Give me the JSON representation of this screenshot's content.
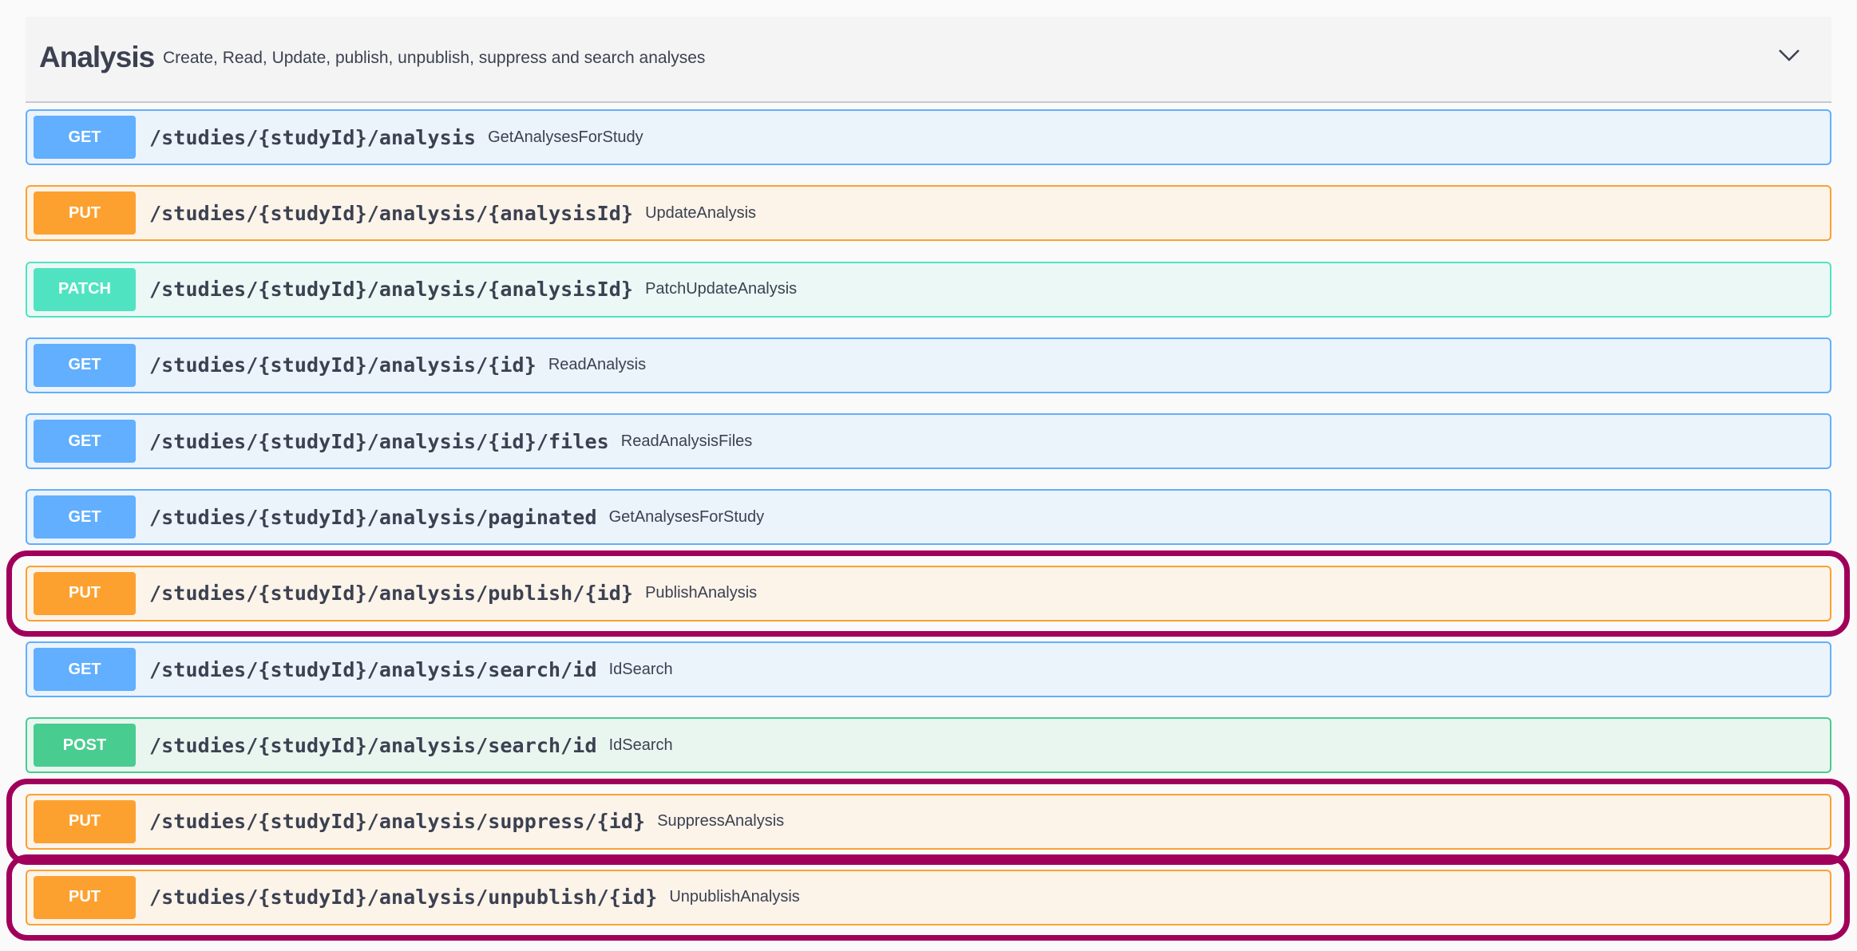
{
  "section": {
    "title": "Analysis",
    "description": "Create, Read, Update, publish, unpublish, suppress and search analyses",
    "toggle_icon": "chevron-down-icon"
  },
  "method_colors": {
    "GET": {
      "badge": "#61affe",
      "bg": "#ebf3fb",
      "border": "#61affe"
    },
    "PUT": {
      "badge": "#fca130",
      "bg": "#fcf3e9",
      "border": "#fca130"
    },
    "PATCH": {
      "badge": "#50e3c2",
      "bg": "#ebf8f5",
      "border": "#50e3c2"
    },
    "POST": {
      "badge": "#49cc90",
      "bg": "#e9f6f0",
      "border": "#49cc90"
    }
  },
  "highlight_color": "#a0005a",
  "endpoints": [
    {
      "method": "GET",
      "path": "/studies/{studyId}/analysis",
      "summary": "GetAnalysesForStudy",
      "highlighted": false
    },
    {
      "method": "PUT",
      "path": "/studies/{studyId}/analysis/{analysisId}",
      "summary": "UpdateAnalysis",
      "highlighted": false
    },
    {
      "method": "PATCH",
      "path": "/studies/{studyId}/analysis/{analysisId}",
      "summary": "PatchUpdateAnalysis",
      "highlighted": false
    },
    {
      "method": "GET",
      "path": "/studies/{studyId}/analysis/{id}",
      "summary": "ReadAnalysis",
      "highlighted": false
    },
    {
      "method": "GET",
      "path": "/studies/{studyId}/analysis/{id}/files",
      "summary": "ReadAnalysisFiles",
      "highlighted": false
    },
    {
      "method": "GET",
      "path": "/studies/{studyId}/analysis/paginated",
      "summary": "GetAnalysesForStudy",
      "highlighted": false
    },
    {
      "method": "PUT",
      "path": "/studies/{studyId}/analysis/publish/{id}",
      "summary": "PublishAnalysis",
      "highlighted": true
    },
    {
      "method": "GET",
      "path": "/studies/{studyId}/analysis/search/id",
      "summary": "IdSearch",
      "highlighted": false
    },
    {
      "method": "POST",
      "path": "/studies/{studyId}/analysis/search/id",
      "summary": "IdSearch",
      "highlighted": false
    },
    {
      "method": "PUT",
      "path": "/studies/{studyId}/analysis/suppress/{id}",
      "summary": "SuppressAnalysis",
      "highlighted": true
    },
    {
      "method": "PUT",
      "path": "/studies/{studyId}/analysis/unpublish/{id}",
      "summary": "UnpublishAnalysis",
      "highlighted": true
    }
  ]
}
